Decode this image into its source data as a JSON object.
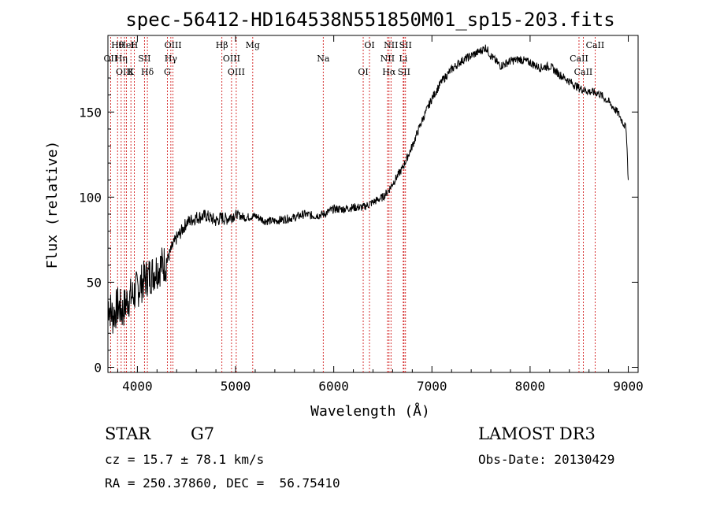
{
  "chart_data": {
    "type": "line",
    "title": "spec-56412-HD164538N551850M01_sp15-203.fits",
    "xlabel": "Wavelength (Å)",
    "ylabel": "Flux (relative)",
    "xlim": [
      3700,
      9100
    ],
    "ylim": [
      -3,
      195
    ],
    "xticks": [
      4000,
      5000,
      6000,
      7000,
      8000,
      9000
    ],
    "xtick_labels": [
      "4000",
      "5000",
      "6000",
      "7000",
      "8000",
      "9000"
    ],
    "yticks": [
      0,
      50,
      100,
      150
    ],
    "ytick_labels": [
      "0",
      "50",
      "100",
      "150"
    ],
    "grid": false,
    "series": [
      {
        "name": "flux",
        "x": [
          3700,
          3750,
          3800,
          3850,
          3900,
          3950,
          4000,
          4050,
          4100,
          4150,
          4200,
          4250,
          4300,
          4350,
          4400,
          4450,
          4500,
          4600,
          4700,
          4800,
          4860,
          4900,
          5000,
          5100,
          5200,
          5300,
          5400,
          5500,
          5600,
          5700,
          5800,
          5900,
          6000,
          6100,
          6200,
          6300,
          6400,
          6500,
          6560,
          6600,
          6700,
          6800,
          6900,
          7000,
          7100,
          7200,
          7300,
          7400,
          7500,
          7550,
          7600,
          7700,
          7800,
          7900,
          8000,
          8100,
          8200,
          8300,
          8400,
          8500,
          8600,
          8700,
          8800,
          8900,
          8980,
          9000
        ],
        "y": [
          38,
          30,
          36,
          33,
          40,
          42,
          46,
          50,
          53,
          55,
          58,
          60,
          62,
          70,
          76,
          80,
          85,
          88,
          89,
          86,
          88,
          87,
          90,
          88,
          89,
          86,
          86,
          87,
          88,
          90,
          89,
          90,
          93,
          93,
          94,
          94,
          97,
          100,
          104,
          108,
          117,
          130,
          145,
          158,
          168,
          175,
          180,
          183,
          186,
          188,
          183,
          177,
          180,
          181,
          179,
          176,
          177,
          172,
          168,
          164,
          162,
          161,
          156,
          149,
          140,
          110
        ]
      }
    ],
    "lines": [
      {
        "label": "Hθ",
        "x": 3798
      },
      {
        "label": "OII",
        "x": 3727
      },
      {
        "label": "OIII",
        "x": 3869
      },
      {
        "label": "HeI",
        "x": 3889
      },
      {
        "label": "Hη",
        "x": 3835
      },
      {
        "label": "K",
        "x": 3934
      },
      {
        "label": "H",
        "x": 3968
      },
      {
        "label": "SII",
        "x": 4072
      },
      {
        "label": "Hδ",
        "x": 4102
      },
      {
        "label": "OIII",
        "x": 4363
      },
      {
        "label": "Hγ",
        "x": 4341
      },
      {
        "label": "G",
        "x": 4305
      },
      {
        "label": "Hβ",
        "x": 4861
      },
      {
        "label": "OIII",
        "x": 4959
      },
      {
        "label": "OIII",
        "x": 5007
      },
      {
        "label": "Mg",
        "x": 5175
      },
      {
        "label": "Na",
        "x": 5893
      },
      {
        "label": "OI",
        "x": 6300
      },
      {
        "label": "OI",
        "x": 6364
      },
      {
        "label": "NII",
        "x": 6548
      },
      {
        "label": "Hα",
        "x": 6563
      },
      {
        "label": "NII",
        "x": 6583
      },
      {
        "label": "Li",
        "x": 6708
      },
      {
        "label": "SII",
        "x": 6716
      },
      {
        "label": "SII",
        "x": 6731
      },
      {
        "label": "CaII",
        "x": 8498
      },
      {
        "label": "CaII",
        "x": 8542
      },
      {
        "label": "CaII",
        "x": 8662
      }
    ]
  },
  "info": {
    "class_label": "STAR",
    "subclass": "G7",
    "survey": "LAMOST DR3",
    "cz": "cz = 15.7 ± 78.1 km/s",
    "obs_date": "Obs-Date: 20130429",
    "coords": "RA = 250.37860, DEC =  56.75410"
  },
  "colors": {
    "line": "#000000",
    "marker": "#cc0000",
    "background": "#ffffff"
  }
}
